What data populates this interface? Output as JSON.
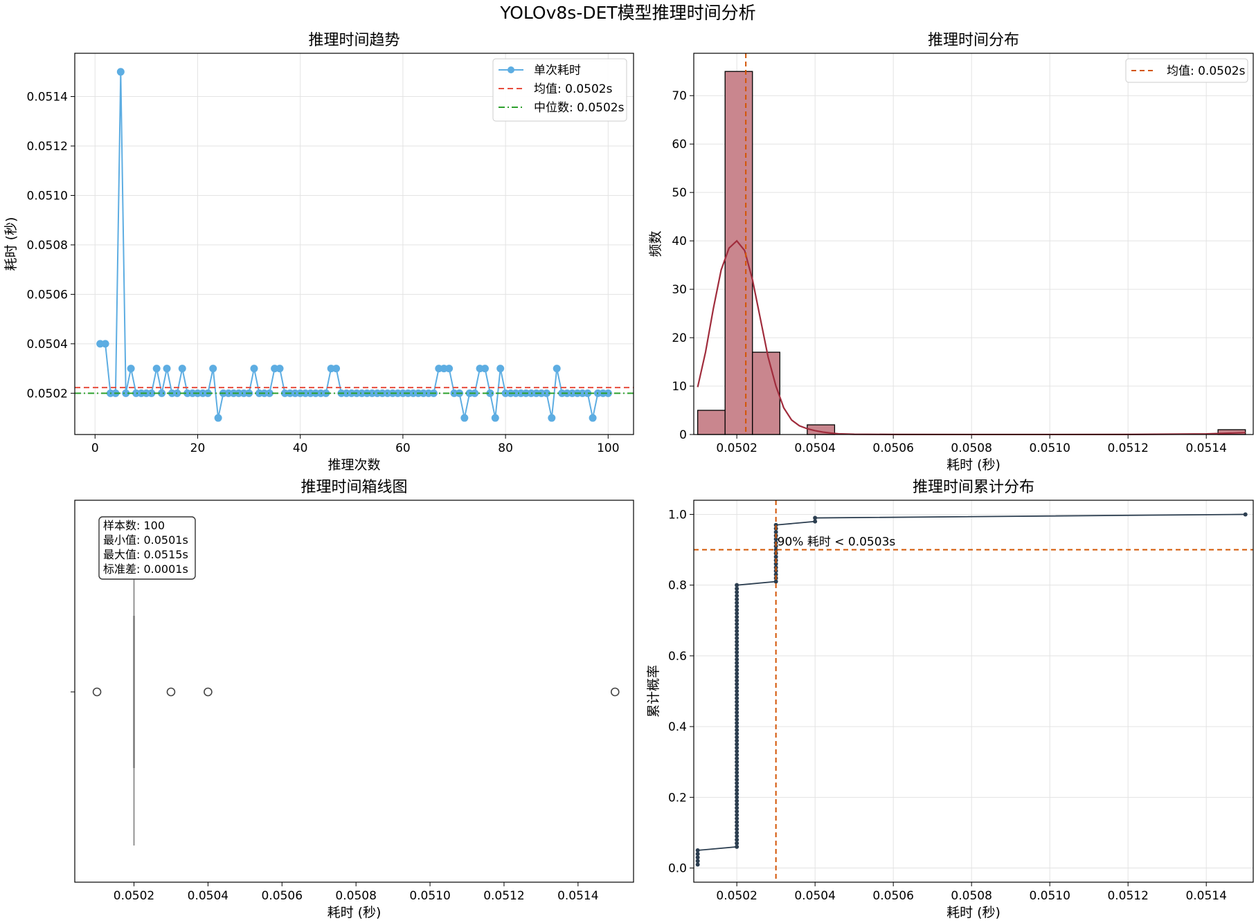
{
  "figure": {
    "title": "YOLOv8s-DET模型推理时间分析"
  },
  "colors": {
    "line": "#5DADE2",
    "mean": "#E74C3C",
    "median": "#2CA02C",
    "hist_fill": "#C9868E",
    "kde": "#A02C3C",
    "cdf": "#2C3E50",
    "p90": "#D35400",
    "box": "#777777"
  },
  "chart_data": [
    {
      "type": "line",
      "title": "推理时间趋势",
      "xlabel": "推理次数",
      "ylabel": "耗时 (秒)",
      "xlim": [
        -3.95,
        104.95
      ],
      "ylim": [
        0.050033,
        0.051575
      ],
      "xticks": [
        0,
        20,
        40,
        60,
        80,
        100
      ],
      "yticks": [
        0.0502,
        0.0504,
        0.0506,
        0.0508,
        0.051,
        0.0512,
        0.0514
      ],
      "ytick_labels": [
        "0.0502",
        "0.0504",
        "0.0506",
        "0.0508",
        "0.0510",
        "0.0512",
        "0.0514"
      ],
      "grid": true,
      "legend": "top-right",
      "series": [
        {
          "name": "单次耗时",
          "x_start": 1,
          "values": [
            0.0504,
            0.0504,
            0.0502,
            0.0502,
            0.0515,
            0.0502,
            0.0503,
            0.0502,
            0.0502,
            0.0502,
            0.0502,
            0.0503,
            0.0502,
            0.0503,
            0.0502,
            0.0502,
            0.0503,
            0.0502,
            0.0502,
            0.0502,
            0.0502,
            0.0502,
            0.0503,
            0.0501,
            0.0502,
            0.0502,
            0.0502,
            0.0502,
            0.0502,
            0.0502,
            0.0503,
            0.0502,
            0.0502,
            0.0502,
            0.0503,
            0.0503,
            0.0502,
            0.0502,
            0.0502,
            0.0502,
            0.0502,
            0.0502,
            0.0502,
            0.0502,
            0.0502,
            0.0503,
            0.0503,
            0.0502,
            0.0502,
            0.0502,
            0.0502,
            0.0502,
            0.0502,
            0.0502,
            0.0502,
            0.0502,
            0.0502,
            0.0502,
            0.0502,
            0.0502,
            0.0502,
            0.0502,
            0.0502,
            0.0502,
            0.0502,
            0.0502,
            0.0503,
            0.0503,
            0.0503,
            0.0502,
            0.0502,
            0.0501,
            0.0502,
            0.0502,
            0.0503,
            0.0503,
            0.0502,
            0.0501,
            0.0503,
            0.0502,
            0.0502,
            0.0502,
            0.0502,
            0.0502,
            0.0502,
            0.0502,
            0.0502,
            0.0502,
            0.0501,
            0.0503,
            0.0502,
            0.0502,
            0.0502,
            0.0502,
            0.0502,
            0.0502,
            0.0501,
            0.0502,
            0.0502,
            0.0502
          ]
        }
      ],
      "hlines": [
        {
          "name": "均值: 0.0502s",
          "y": 0.050223,
          "style": "dashed"
        },
        {
          "name": "中位数: 0.0502s",
          "y": 0.0502,
          "style": "dashdot"
        }
      ]
    },
    {
      "type": "bar",
      "title": "推理时间分布",
      "xlabel": "耗时 (秒)",
      "ylabel": "频数",
      "xlim": [
        0.05009,
        0.05152
      ],
      "ylim": [
        0,
        78.75
      ],
      "xticks": [
        0.0502,
        0.0504,
        0.0506,
        0.0508,
        0.051,
        0.0512,
        0.0514
      ],
      "xtick_labels": [
        "0.0502",
        "0.0504",
        "0.0506",
        "0.0508",
        "0.0510",
        "0.0512",
        "0.0514"
      ],
      "yticks": [
        0,
        10,
        20,
        30,
        40,
        50,
        60,
        70
      ],
      "grid": true,
      "legend": "top-right",
      "bins": [
        {
          "x0": 0.0501,
          "x1": 0.05017,
          "count": 5
        },
        {
          "x0": 0.05017,
          "x1": 0.05024,
          "count": 75
        },
        {
          "x0": 0.05024,
          "x1": 0.05031,
          "count": 17
        },
        {
          "x0": 0.05038,
          "x1": 0.05045,
          "count": 2
        },
        {
          "x0": 0.05143,
          "x1": 0.0515,
          "count": 1
        }
      ],
      "kde": {
        "x": [
          0.0501,
          0.05012,
          0.05014,
          0.05016,
          0.05018,
          0.0502,
          0.05022,
          0.05024,
          0.05026,
          0.05028,
          0.0503,
          0.05032,
          0.05034,
          0.05036,
          0.05038,
          0.0504,
          0.05042,
          0.05044,
          0.05046,
          0.0505,
          0.0506,
          0.0508,
          0.051,
          0.0512,
          0.0514,
          0.0515
        ],
        "y": [
          9.8,
          17,
          26,
          34,
          38.5,
          40,
          38,
          32,
          24,
          16,
          10,
          5.5,
          3,
          1.8,
          1.2,
          0.8,
          0.5,
          0.3,
          0.15,
          0.05,
          0.02,
          0.01,
          0.01,
          0.02,
          0.12,
          0.4
        ]
      },
      "vline": {
        "name": "均值: 0.0502s",
        "x": 0.050223
      }
    },
    {
      "type": "box",
      "title": "推理时间箱线图",
      "xlabel": "耗时 (秒)",
      "xlim": [
        0.05004,
        0.05155
      ],
      "xticks": [
        0.0502,
        0.0504,
        0.0506,
        0.0508,
        0.051,
        0.0512,
        0.0514
      ],
      "xtick_labels": [
        "0.0502",
        "0.0504",
        "0.0506",
        "0.0508",
        "0.0510",
        "0.0512",
        "0.0514"
      ],
      "box": {
        "whisker_low": 0.0502,
        "q1": 0.0502,
        "median": 0.0502,
        "q3": 0.0502,
        "whisker_high": 0.0502
      },
      "outliers": [
        0.0501,
        0.0503,
        0.0504,
        0.0515
      ],
      "stats_lines": [
        "样本数: 100",
        "最小值: 0.0501s",
        "最大值: 0.0515s",
        "标准差: 0.0001s"
      ]
    },
    {
      "type": "scatter",
      "title": "推理时间累计分布",
      "xlabel": "耗时 (秒)",
      "ylabel": "累计概率",
      "xlim": [
        0.05009,
        0.05152
      ],
      "ylim": [
        -0.04,
        1.04
      ],
      "xticks": [
        0.0502,
        0.0504,
        0.0506,
        0.0508,
        0.051,
        0.0512,
        0.0514
      ],
      "xtick_labels": [
        "0.0502",
        "0.0504",
        "0.0506",
        "0.0508",
        "0.0510",
        "0.0512",
        "0.0514"
      ],
      "yticks": [
        0,
        0.2,
        0.4,
        0.6,
        0.8,
        1.0
      ],
      "ytick_labels": [
        "0.0",
        "0.2",
        "0.4",
        "0.6",
        "0.8",
        "1.0"
      ],
      "grid": true,
      "groups": [
        {
          "x": 0.0501,
          "count": 5
        },
        {
          "x": 0.0502,
          "count": 75
        },
        {
          "x": 0.0503,
          "count": 17
        },
        {
          "x": 0.0504,
          "count": 2
        },
        {
          "x": 0.0515,
          "count": 1
        }
      ],
      "p90": {
        "x": 0.0503,
        "y": 0.9,
        "label": "90% 耗时 < 0.0503s"
      }
    }
  ]
}
